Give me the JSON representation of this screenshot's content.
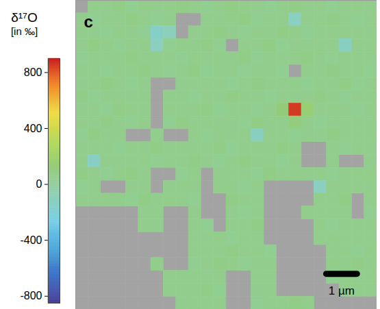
{
  "chart_data": {
    "type": "heatmap",
    "panel_label": "c",
    "tick_labels": false,
    "xlim": [
      0,
      9.8
    ],
    "ylim": [
      0,
      10
    ],
    "cells": [
      [
        null,
        60,
        50,
        70,
        40,
        60,
        50,
        60,
        70,
        50,
        40,
        60,
        70,
        60,
        50,
        40,
        60,
        70,
        50,
        60,
        40,
        50,
        60,
        50
      ],
      [
        50,
        40,
        60,
        50,
        70,
        60,
        40,
        50,
        null,
        null,
        60,
        50,
        60,
        70,
        40,
        60,
        50,
        -120,
        50,
        60,
        70,
        50,
        40,
        60
      ],
      [
        60,
        50,
        40,
        60,
        50,
        30,
        -150,
        -100,
        null,
        50,
        60,
        70,
        50,
        40,
        60,
        50,
        70,
        60,
        40,
        50,
        60,
        50,
        60,
        50
      ],
      [
        50,
        70,
        60,
        40,
        50,
        60,
        -120,
        40,
        60,
        50,
        70,
        40,
        null,
        60,
        50,
        70,
        40,
        60,
        50,
        60,
        50,
        -130,
        50,
        60
      ],
      [
        40,
        60,
        50,
        60,
        70,
        50,
        60,
        50,
        40,
        60,
        50,
        60,
        50,
        70,
        40,
        60,
        50,
        60,
        70,
        50,
        40,
        60,
        50,
        50
      ],
      [
        60,
        50,
        40,
        50,
        60,
        70,
        50,
        40,
        60,
        70,
        40,
        50,
        60,
        40,
        60,
        50,
        40,
        null,
        60,
        50,
        70,
        50,
        60,
        40
      ],
      [
        50,
        60,
        70,
        60,
        40,
        50,
        null,
        null,
        50,
        60,
        50,
        60,
        40,
        50,
        70,
        60,
        50,
        60,
        40,
        60,
        50,
        70,
        40,
        60
      ],
      [
        70,
        40,
        50,
        60,
        50,
        60,
        null,
        50,
        60,
        40,
        60,
        50,
        70,
        60,
        50,
        40,
        60,
        50,
        60,
        70,
        50,
        40,
        60,
        50
      ],
      [
        50,
        60,
        40,
        70,
        60,
        50,
        null,
        60,
        50,
        60,
        70,
        40,
        50,
        60,
        40,
        60,
        120,
        850,
        150,
        50,
        60,
        50,
        40,
        60
      ],
      [
        60,
        50,
        70,
        50,
        40,
        60,
        null,
        40,
        70,
        50,
        60,
        50,
        60,
        40,
        70,
        50,
        60,
        110,
        60,
        40,
        50,
        60,
        50,
        50
      ],
      [
        40,
        70,
        50,
        60,
        null,
        null,
        50,
        null,
        null,
        60,
        40,
        60,
        50,
        60,
        -130,
        60,
        50,
        40,
        60,
        50,
        70,
        60,
        50,
        60
      ],
      [
        60,
        50,
        60,
        40,
        60,
        50,
        70,
        50,
        60,
        50,
        60,
        70,
        40,
        50,
        60,
        50,
        70,
        60,
        null,
        null,
        50,
        40,
        60,
        50
      ],
      [
        50,
        -140,
        50,
        60,
        50,
        60,
        40,
        60,
        50,
        70,
        50,
        40,
        60,
        70,
        50,
        60,
        40,
        50,
        null,
        null,
        60,
        null,
        null,
        50
      ],
      [
        70,
        50,
        40,
        60,
        70,
        50,
        null,
        null,
        40,
        60,
        null,
        50,
        60,
        50,
        40,
        70,
        50,
        60,
        50,
        60,
        40,
        50,
        60,
        60
      ],
      [
        40,
        60,
        null,
        null,
        50,
        60,
        null,
        50,
        60,
        50,
        null,
        60,
        50,
        40,
        60,
        null,
        null,
        null,
        null,
        -120,
        50,
        60,
        50,
        50
      ],
      [
        60,
        50,
        60,
        50,
        40,
        70,
        50,
        60,
        50,
        40,
        null,
        null,
        70,
        60,
        50,
        null,
        null,
        null,
        null,
        60,
        50,
        70,
        null,
        60
      ],
      [
        null,
        null,
        null,
        null,
        null,
        50,
        60,
        null,
        null,
        60,
        null,
        null,
        50,
        40,
        60,
        null,
        null,
        null,
        60,
        50,
        60,
        50,
        null,
        40
      ],
      [
        null,
        null,
        null,
        null,
        null,
        60,
        50,
        null,
        null,
        50,
        40,
        null,
        60,
        50,
        70,
        null,
        null,
        null,
        null,
        60,
        40,
        60,
        50,
        60
      ],
      [
        null,
        null,
        null,
        null,
        null,
        null,
        null,
        null,
        null,
        60,
        50,
        60,
        40,
        60,
        50,
        null,
        null,
        null,
        null,
        50,
        60,
        50,
        60,
        50
      ],
      [
        null,
        null,
        null,
        null,
        null,
        null,
        null,
        null,
        null,
        50,
        60,
        50,
        70,
        50,
        60,
        40,
        null,
        null,
        null,
        null,
        50,
        60,
        40,
        60
      ],
      [
        null,
        null,
        null,
        null,
        null,
        null,
        60,
        null,
        null,
        40,
        50,
        70,
        60,
        40,
        50,
        60,
        null,
        null,
        null,
        null,
        60,
        50,
        70,
        50
      ],
      [
        null,
        null,
        null,
        null,
        null,
        null,
        null,
        60,
        50,
        60,
        50,
        60,
        null,
        null,
        60,
        50,
        null,
        null,
        null,
        null,
        40,
        60,
        50,
        60
      ],
      [
        null,
        null,
        null,
        null,
        null,
        null,
        null,
        50,
        60,
        50,
        70,
        40,
        null,
        null,
        50,
        60,
        null,
        null,
        null,
        null,
        null,
        50,
        60,
        50
      ],
      [
        null,
        null,
        null,
        null,
        null,
        null,
        null,
        null,
        50,
        60,
        50,
        60,
        null,
        null,
        40,
        60,
        50,
        70,
        60,
        null,
        null,
        null,
        null,
        null
      ]
    ],
    "colorbar": {
      "title": "δ¹⁷O",
      "subtitle": "[in ‰]",
      "range": [
        -850,
        900
      ],
      "ticks": [
        -800,
        -400,
        0,
        400,
        800
      ]
    },
    "scale_bar": {
      "label": "1 µm",
      "length": 1
    }
  }
}
